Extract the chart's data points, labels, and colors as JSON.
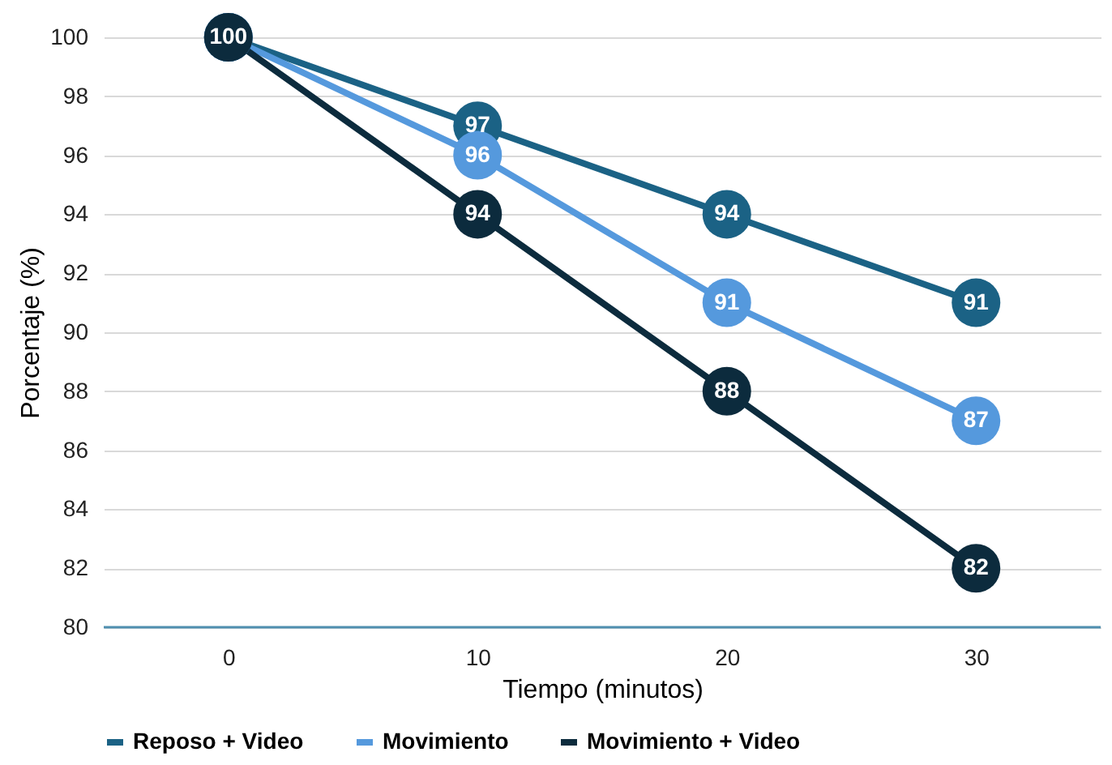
{
  "chart_data": {
    "type": "line",
    "xlabel": "Tiempo (minutos)",
    "ylabel": "Porcentaje (%)",
    "categories": [
      "0",
      "10",
      "20",
      "30"
    ],
    "series": [
      {
        "name": "Reposo + Video",
        "color": "#1b6285",
        "values": [
          100,
          97,
          94,
          91
        ],
        "value_labels": [
          null,
          "97",
          "94",
          "91"
        ]
      },
      {
        "name": "Movimiento",
        "color": "#5599dd",
        "values": [
          100,
          96,
          91,
          87
        ],
        "value_labels": [
          null,
          "96",
          "91",
          "87"
        ]
      },
      {
        "name": "Movimiento + Video",
        "color": "#0c2b3d",
        "values": [
          100,
          94,
          88,
          82
        ],
        "value_labels": [
          "100",
          "94",
          "88",
          "82"
        ]
      }
    ],
    "ylim": [
      80,
      100
    ],
    "yticks": [
      80,
      82,
      84,
      86,
      88,
      90,
      92,
      94,
      96,
      98,
      100
    ],
    "grid": "y",
    "legend": "bottom",
    "marker": "circle",
    "line_style": "solid"
  }
}
